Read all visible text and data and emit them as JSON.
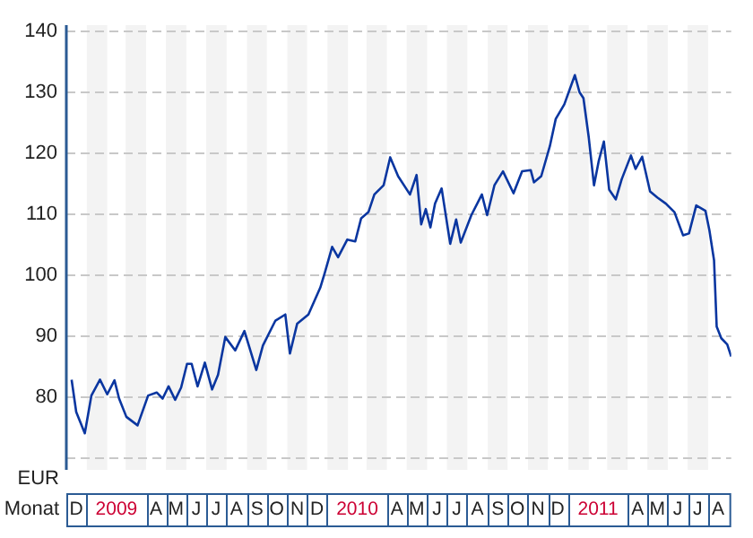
{
  "chart_data": {
    "type": "line",
    "xlabel": "Monat",
    "ylabel": "EUR",
    "marker": "none",
    "grid": "y",
    "xlim": [
      "2008-12-01",
      "2011-09-05"
    ],
    "ylim": [
      68,
      141
    ],
    "yticks": [
      {
        "value": 70,
        "label": null
      },
      80,
      90,
      100,
      110,
      120,
      130,
      140
    ],
    "xticks": [
      {
        "value": "2008-12-16",
        "label": "D"
      },
      {
        "value": "2009-02-15",
        "label": "2009"
      },
      {
        "value": "2009-04-16",
        "label": "A"
      },
      {
        "value": "2009-05-16",
        "label": "M"
      },
      {
        "value": "2009-06-16",
        "label": "J"
      },
      {
        "value": "2009-07-16",
        "label": "J"
      },
      {
        "value": "2009-08-16",
        "label": "A"
      },
      {
        "value": "2009-09-16",
        "label": "S"
      },
      {
        "value": "2009-10-16",
        "label": "O"
      },
      {
        "value": "2009-11-16",
        "label": "N"
      },
      {
        "value": "2009-12-16",
        "label": "D"
      },
      {
        "value": "2010-02-15",
        "label": "2010"
      },
      {
        "value": "2010-04-16",
        "label": "A"
      },
      {
        "value": "2010-05-16",
        "label": "M"
      },
      {
        "value": "2010-06-16",
        "label": "J"
      },
      {
        "value": "2010-07-16",
        "label": "J"
      },
      {
        "value": "2010-08-16",
        "label": "A"
      },
      {
        "value": "2010-09-16",
        "label": "S"
      },
      {
        "value": "2010-10-16",
        "label": "O"
      },
      {
        "value": "2010-11-16",
        "label": "N"
      },
      {
        "value": "2010-12-16",
        "label": "D"
      },
      {
        "value": "2011-02-15",
        "label": "2011"
      },
      {
        "value": "2011-04-16",
        "label": "A"
      },
      {
        "value": "2011-05-16",
        "label": "M"
      },
      {
        "value": "2011-06-16",
        "label": "J"
      },
      {
        "value": "2011-07-16",
        "label": "J"
      },
      {
        "value": "2011-08-16",
        "label": "A"
      }
    ],
    "bands": [
      {
        "axis": "x",
        "from": "2009-01-01",
        "to": "2009-02-01",
        "color": "#f3f3f3"
      },
      {
        "axis": "x",
        "from": "2009-03-01",
        "to": "2009-04-01",
        "color": "#f3f3f3"
      },
      {
        "axis": "x",
        "from": "2009-05-01",
        "to": "2009-06-01",
        "color": "#f3f3f3"
      },
      {
        "axis": "x",
        "from": "2009-07-01",
        "to": "2009-08-01",
        "color": "#f3f3f3"
      },
      {
        "axis": "x",
        "from": "2009-09-01",
        "to": "2009-10-01",
        "color": "#f3f3f3"
      },
      {
        "axis": "x",
        "from": "2009-11-01",
        "to": "2009-12-01",
        "color": "#f3f3f3"
      },
      {
        "axis": "x",
        "from": "2010-01-01",
        "to": "2010-02-01",
        "color": "#f3f3f3"
      },
      {
        "axis": "x",
        "from": "2010-03-01",
        "to": "2010-04-01",
        "color": "#f3f3f3"
      },
      {
        "axis": "x",
        "from": "2010-05-01",
        "to": "2010-06-01",
        "color": "#f3f3f3"
      },
      {
        "axis": "x",
        "from": "2010-07-01",
        "to": "2010-08-01",
        "color": "#f3f3f3"
      },
      {
        "axis": "x",
        "from": "2010-09-01",
        "to": "2010-10-01",
        "color": "#f3f3f3"
      },
      {
        "axis": "x",
        "from": "2010-11-01",
        "to": "2010-12-01",
        "color": "#f3f3f3"
      },
      {
        "axis": "x",
        "from": "2011-01-01",
        "to": "2011-02-01",
        "color": "#f3f3f3"
      },
      {
        "axis": "x",
        "from": "2011-03-01",
        "to": "2011-04-01",
        "color": "#f3f3f3"
      },
      {
        "axis": "x",
        "from": "2011-05-01",
        "to": "2011-06-01",
        "color": "#f3f3f3"
      },
      {
        "axis": "x",
        "from": "2011-07-01",
        "to": "2011-08-01",
        "color": "#f3f3f3"
      }
    ],
    "x": [
      "2008-12-09",
      "2008-12-16",
      "2008-12-29",
      "2009-01-08",
      "2009-01-21",
      "2009-02-01",
      "2009-02-12",
      "2009-02-19",
      "2009-03-02",
      "2009-03-19",
      "2009-04-04",
      "2009-04-17",
      "2009-04-26",
      "2009-05-05",
      "2009-05-15",
      "2009-05-24",
      "2009-06-02",
      "2009-06-09",
      "2009-06-18",
      "2009-06-29",
      "2009-07-10",
      "2009-07-19",
      "2009-07-30",
      "2009-08-14",
      "2009-08-28",
      "2009-09-15",
      "2009-09-25",
      "2009-10-14",
      "2009-10-29",
      "2009-11-05",
      "2009-11-16",
      "2009-12-03",
      "2009-12-21",
      "2009-12-28",
      "2010-01-08",
      "2010-01-17",
      "2010-01-31",
      "2010-02-12",
      "2010-02-21",
      "2010-03-04",
      "2010-03-13",
      "2010-03-27",
      "2010-04-06",
      "2010-04-18",
      "2010-05-06",
      "2010-05-16",
      "2010-05-23",
      "2010-05-30",
      "2010-06-06",
      "2010-06-13",
      "2010-06-23",
      "2010-07-06",
      "2010-07-15",
      "2010-07-22",
      "2010-08-07",
      "2010-08-23",
      "2010-08-31",
      "2010-09-11",
      "2010-09-24",
      "2010-10-10",
      "2010-10-23",
      "2010-11-05",
      "2010-11-10",
      "2010-11-21",
      "2010-12-04",
      "2010-12-13",
      "2010-12-26",
      "2011-01-11",
      "2011-01-18",
      "2011-01-24",
      "2011-02-01",
      "2011-02-09",
      "2011-02-16",
      "2011-02-24",
      "2011-03-04",
      "2011-03-14",
      "2011-03-23",
      "2011-04-06",
      "2011-04-13",
      "2011-04-23",
      "2011-05-05",
      "2011-05-16",
      "2011-05-29",
      "2011-06-11",
      "2011-06-24",
      "2011-07-03",
      "2011-07-14",
      "2011-07-28",
      "2011-08-03",
      "2011-08-10",
      "2011-08-14",
      "2011-08-21",
      "2011-08-30",
      "2011-09-05"
    ],
    "series": [
      {
        "color": "#0a36a0",
        "values": [
          82.8,
          77.5,
          74.0,
          80.2,
          82.8,
          80.4,
          82.7,
          79.7,
          76.7,
          75.3,
          80.2,
          80.7,
          79.7,
          81.7,
          79.5,
          81.5,
          85.4,
          85.4,
          81.7,
          85.6,
          81.2,
          83.6,
          89.8,
          87.6,
          90.8,
          84.4,
          88.4,
          92.5,
          93.5,
          87.1,
          92.0,
          93.5,
          97.9,
          100.4,
          104.6,
          102.9,
          105.8,
          105.5,
          109.3,
          110.3,
          113.2,
          114.7,
          119.3,
          116.2,
          113.2,
          116.4,
          108.3,
          110.8,
          107.8,
          111.7,
          114.2,
          105.1,
          109.1,
          105.3,
          109.8,
          113.2,
          109.8,
          114.7,
          117.0,
          113.4,
          117.0,
          117.2,
          115.2,
          116.2,
          121.1,
          125.6,
          128.0,
          132.8,
          130.0,
          129.0,
          122.6,
          114.7,
          118.6,
          121.9,
          114.0,
          112.4,
          115.7,
          119.6,
          117.4,
          119.4,
          113.7,
          112.7,
          111.7,
          110.3,
          106.5,
          106.8,
          111.4,
          110.5,
          107.3,
          102.4,
          91.5,
          89.6,
          88.6,
          86.6
        ]
      }
    ]
  }
}
